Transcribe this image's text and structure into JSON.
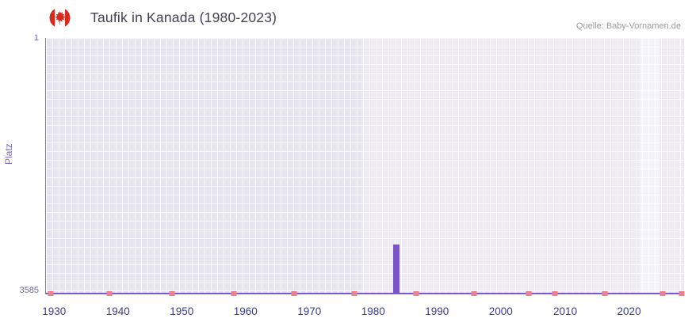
{
  "header": {
    "flag_icon": "canada-flag",
    "title": "Taufik in Kanada (1980-2023)",
    "source": "Quelle: Baby-Vornamen.de"
  },
  "chart_data": {
    "type": "bar",
    "title": "Taufik in Kanada (1980-2023)",
    "xlabel": "",
    "ylabel": "Platz",
    "y_axis": {
      "top_label": "1",
      "bottom_label": "3585",
      "inverted": true,
      "min": 1,
      "max": 3585
    },
    "x_ticks": [
      {
        "label": "1930",
        "pct": 1.4
      },
      {
        "label": "1940",
        "pct": 11.4
      },
      {
        "label": "1950",
        "pct": 21.4
      },
      {
        "label": "1960",
        "pct": 31.4
      },
      {
        "label": "1970",
        "pct": 41.4
      },
      {
        "label": "1980",
        "pct": 51.4
      },
      {
        "label": "1990",
        "pct": 61.4
      },
      {
        "label": "2000",
        "pct": 71.4
      },
      {
        "label": "2010",
        "pct": 81.5
      },
      {
        "label": "2020",
        "pct": 91.5
      }
    ],
    "series": [
      {
        "name": "Platz",
        "year": 1984,
        "rank": 2900,
        "pct": 54.9,
        "estimated": true
      }
    ],
    "baseline_marker_positions_pct": [
      0.8,
      9.9,
      19.8,
      29.4,
      38.9,
      48.3,
      58.0,
      67.1,
      75.7,
      79.8,
      87.6,
      96.6,
      99.6
    ],
    "grid": true,
    "legend": "none",
    "colors": {
      "bar": "#7b54c9",
      "plot_background": "#e7e4f1",
      "plot_background_light": "#edeaf6",
      "highlight_band": "#f4f2fa",
      "axis_line": "#7d57cb",
      "baseline_marker": "#ea8090",
      "x_tick_label": "#3c3b8d",
      "y_tick_label": "#6d62b5",
      "flag_red": "#d52b1e"
    }
  }
}
